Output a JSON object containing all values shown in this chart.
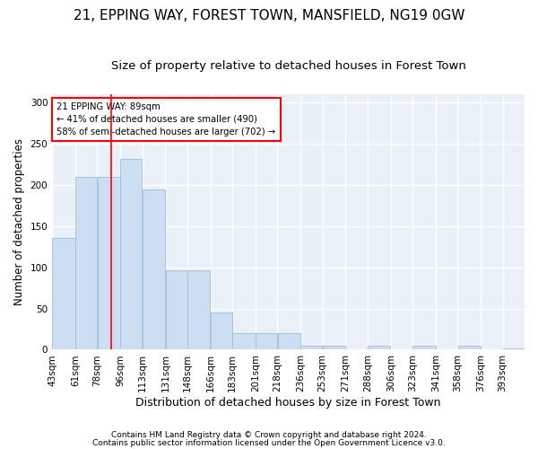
{
  "title": "21, EPPING WAY, FOREST TOWN, MANSFIELD, NG19 0GW",
  "subtitle": "Size of property relative to detached houses in Forest Town",
  "xlabel": "Distribution of detached houses by size in Forest Town",
  "ylabel": "Number of detached properties",
  "bar_color": "#ccdff2",
  "bar_edge_color": "#a0bdd8",
  "background_color": "#eaf0f8",
  "grid_color": "#ffffff",
  "vline_x": 89,
  "vline_color": "red",
  "annotation_text": "21 EPPING WAY: 89sqm\n← 41% of detached houses are smaller (490)\n58% of semi-detached houses are larger (702) →",
  "annotation_box_color": "white",
  "annotation_box_edge_color": "red",
  "footer1": "Contains HM Land Registry data © Crown copyright and database right 2024.",
  "footer2": "Contains public sector information licensed under the Open Government Licence v3.0.",
  "categories": [
    "43sqm",
    "61sqm",
    "78sqm",
    "96sqm",
    "113sqm",
    "131sqm",
    "148sqm",
    "166sqm",
    "183sqm",
    "201sqm",
    "218sqm",
    "236sqm",
    "253sqm",
    "271sqm",
    "288sqm",
    "306sqm",
    "323sqm",
    "341sqm",
    "358sqm",
    "376sqm",
    "393sqm"
  ],
  "bin_edges": [
    43,
    61,
    78,
    96,
    113,
    131,
    148,
    166,
    183,
    201,
    218,
    236,
    253,
    271,
    288,
    306,
    323,
    341,
    358,
    376,
    393,
    410
  ],
  "values": [
    136,
    210,
    210,
    232,
    195,
    96,
    96,
    45,
    20,
    20,
    20,
    5,
    5,
    0,
    5,
    0,
    5,
    0,
    5,
    0,
    2
  ],
  "ylim": [
    0,
    310
  ],
  "yticks": [
    0,
    50,
    100,
    150,
    200,
    250,
    300
  ],
  "title_fontsize": 11,
  "subtitle_fontsize": 9.5,
  "xlabel_fontsize": 9,
  "ylabel_fontsize": 8.5,
  "tick_fontsize": 7.5,
  "footer_fontsize": 6.5,
  "fig_width": 6.0,
  "fig_height": 5.0
}
